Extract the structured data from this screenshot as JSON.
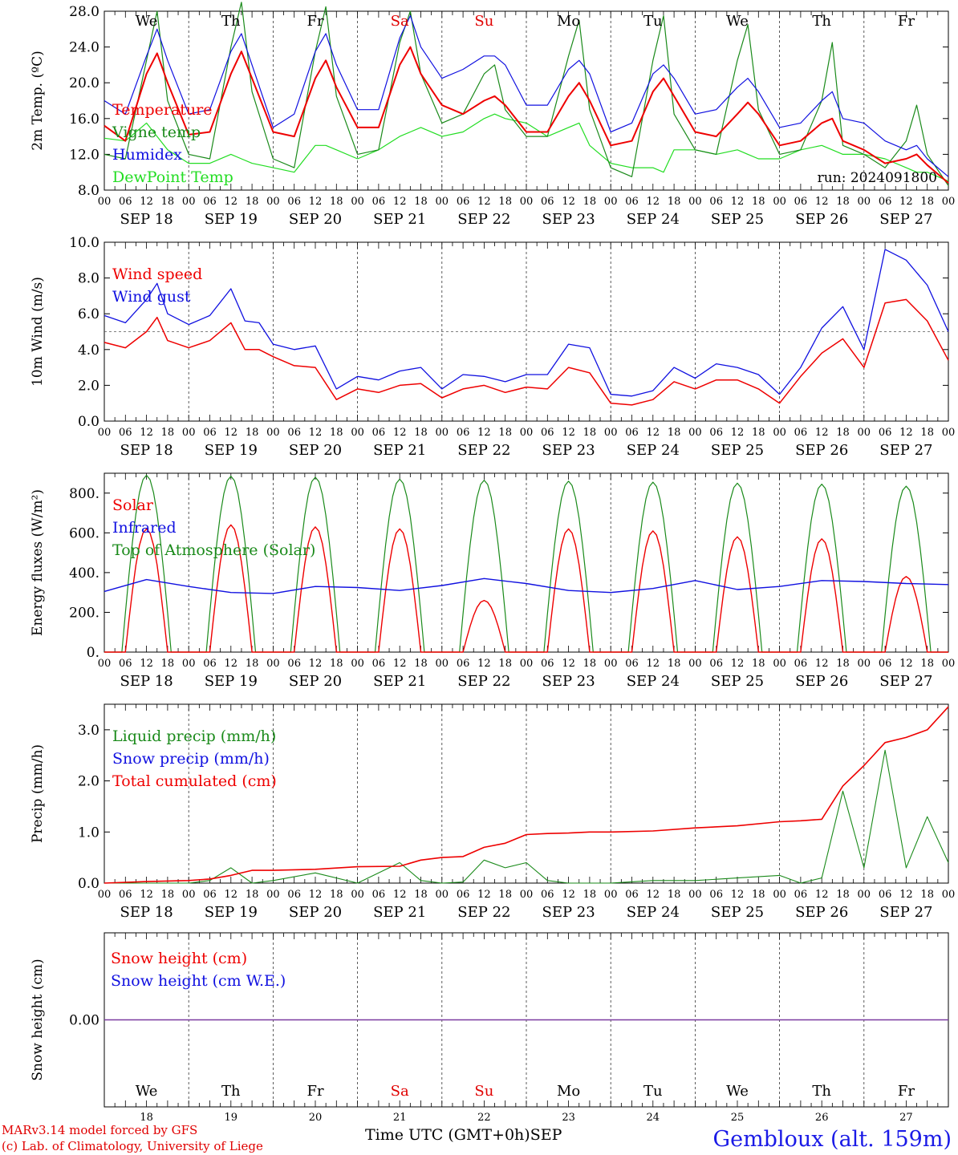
{
  "station": "Gembloux (alt. 159m)",
  "footer": {
    "model": "MARv3.14 model forced by GFS",
    "lab": "(c) Lab. of Climatology, University of Liege",
    "time_axis": "Time UTC (GMT+0h)",
    "month": "SEP"
  },
  "time_axis": {
    "days": [
      "SEP 18",
      "SEP 19",
      "SEP 20",
      "SEP 21",
      "SEP 22",
      "SEP 23",
      "SEP 24",
      "SEP 25",
      "SEP 26",
      "SEP 27"
    ],
    "day_numbers": [
      "18",
      "19",
      "20",
      "21",
      "22",
      "23",
      "24",
      "25",
      "26",
      "27"
    ],
    "weekdays": [
      "We",
      "Th",
      "Fr",
      "Sa",
      "Su",
      "Mo",
      "Tu",
      "We",
      "Th",
      "Fr"
    ],
    "weekend_color": "#e00000",
    "hour_ticks": [
      "00",
      "06",
      "12",
      "18"
    ],
    "x_range_hours": [
      0,
      240
    ]
  },
  "colors": {
    "red": "#ee0000",
    "blue": "#1010e0",
    "green": "#1a8a1a",
    "light_green": "#22dd22",
    "purple": "#7a3aa0"
  },
  "chart_data": [
    {
      "type": "line",
      "ylabel": "2m Temp. (ºC)",
      "yticks": [
        "8.0",
        "12.0",
        "16.0",
        "20.0",
        "24.0",
        "28.0"
      ],
      "ylim": [
        8,
        28
      ],
      "run_label": "run: 2024091800",
      "legend": [
        "Temperature",
        "Vigne temp",
        "Humidex",
        "DewPoint Temp"
      ],
      "x": [
        0,
        6,
        12,
        15,
        18,
        24,
        30,
        36,
        39,
        42,
        48,
        54,
        60,
        63,
        66,
        72,
        78,
        84,
        87,
        90,
        96,
        102,
        108,
        111,
        114,
        120,
        126,
        132,
        135,
        138,
        144,
        150,
        156,
        159,
        162,
        168,
        174,
        180,
        183,
        186,
        192,
        198,
        204,
        207,
        210,
        216,
        222,
        228,
        231,
        234,
        240
      ],
      "series": [
        {
          "name": "Temperature",
          "color": "red",
          "values": [
            15.2,
            13.5,
            21.0,
            23.3,
            20.0,
            14.2,
            14.5,
            21.0,
            23.5,
            20.5,
            14.5,
            14.0,
            20.5,
            22.5,
            19.5,
            15.0,
            15.0,
            22.0,
            24.0,
            21.0,
            17.5,
            16.5,
            18.0,
            18.5,
            17.5,
            14.5,
            14.5,
            18.5,
            20.0,
            18.0,
            13.0,
            13.5,
            19.0,
            20.5,
            18.5,
            14.5,
            14.0,
            16.5,
            17.8,
            16.5,
            13.0,
            13.5,
            15.5,
            16.0,
            13.5,
            12.5,
            11.0,
            11.5,
            12.0,
            10.8,
            8.8
          ]
        },
        {
          "name": "Vigne temp",
          "color": "green",
          "values": [
            12.0,
            11.5,
            22.5,
            28.0,
            18.0,
            12.0,
            11.5,
            24.0,
            29.0,
            19.0,
            11.5,
            10.5,
            23.5,
            28.5,
            18.5,
            12.0,
            12.5,
            24.5,
            28.0,
            21.0,
            15.5,
            16.5,
            21.0,
            22.0,
            17.0,
            14.0,
            14.0,
            23.0,
            27.0,
            17.0,
            10.5,
            9.5,
            22.5,
            27.5,
            16.5,
            12.5,
            12.0,
            22.5,
            26.5,
            17.0,
            12.0,
            12.5,
            18.0,
            24.5,
            13.0,
            12.0,
            10.5,
            13.5,
            17.5,
            12.0,
            8.5
          ]
        },
        {
          "name": "Humidex",
          "color": "blue",
          "values": [
            18.0,
            16.5,
            23.0,
            26.0,
            22.5,
            16.5,
            17.0,
            23.5,
            25.5,
            22.0,
            15.0,
            16.5,
            23.5,
            25.5,
            22.0,
            17.0,
            17.0,
            25.0,
            27.5,
            24.0,
            20.5,
            21.5,
            23.0,
            23.0,
            22.0,
            17.5,
            17.5,
            21.5,
            22.5,
            21.0,
            14.5,
            15.5,
            21.0,
            22.0,
            20.5,
            16.5,
            17.0,
            19.5,
            20.5,
            19.0,
            15.0,
            15.5,
            18.0,
            19.0,
            16.0,
            15.5,
            13.5,
            12.5,
            13.0,
            11.5,
            9.5
          ]
        },
        {
          "name": "DewPoint Temp",
          "color": "light_green",
          "values": [
            13.8,
            13.5,
            15.5,
            14.0,
            12.5,
            11.0,
            11.0,
            12.0,
            11.5,
            11.0,
            10.5,
            10.0,
            13.0,
            13.0,
            12.5,
            11.5,
            12.5,
            14.0,
            14.5,
            15.0,
            14.0,
            14.5,
            16.0,
            16.5,
            16.0,
            15.5,
            14.0,
            15.0,
            15.5,
            13.0,
            11.0,
            10.5,
            10.5,
            10.0,
            12.5,
            12.5,
            12.0,
            12.5,
            12.0,
            11.5,
            11.5,
            12.5,
            13.0,
            12.5,
            12.0,
            12.0,
            11.5,
            10.5,
            10.0,
            10.0,
            9.0
          ]
        }
      ]
    },
    {
      "type": "line",
      "ylabel": "10m Wind (m/s)",
      "yticks": [
        "0.0",
        "2.0",
        "4.0",
        "6.0",
        "8.0",
        "10.0"
      ],
      "ylim": [
        0,
        10
      ],
      "reference_line": 5.0,
      "legend": [
        "Wind speed",
        "Wind gust"
      ],
      "x": [
        0,
        6,
        12,
        15,
        18,
        24,
        30,
        36,
        40,
        44,
        48,
        54,
        60,
        66,
        72,
        78,
        84,
        90,
        96,
        102,
        108,
        114,
        120,
        126,
        132,
        138,
        144,
        150,
        156,
        162,
        168,
        174,
        180,
        186,
        192,
        198,
        204,
        210,
        216,
        222,
        228,
        234,
        240
      ],
      "series": [
        {
          "name": "Wind speed",
          "color": "red",
          "values": [
            4.4,
            4.1,
            5.0,
            5.8,
            4.5,
            4.1,
            4.5,
            5.5,
            4.0,
            4.0,
            3.6,
            3.1,
            3.0,
            1.2,
            1.8,
            1.6,
            2.0,
            2.1,
            1.3,
            1.8,
            2.0,
            1.6,
            1.9,
            1.8,
            3.0,
            2.7,
            1.0,
            0.9,
            1.2,
            2.2,
            1.8,
            2.3,
            2.3,
            1.8,
            1.0,
            2.5,
            3.8,
            4.6,
            3.0,
            6.6,
            6.8,
            5.6,
            3.4
          ]
        },
        {
          "name": "Wind gust",
          "color": "blue",
          "values": [
            5.9,
            5.5,
            6.8,
            7.7,
            6.0,
            5.4,
            5.9,
            7.4,
            5.6,
            5.5,
            4.3,
            4.0,
            4.2,
            1.8,
            2.5,
            2.3,
            2.8,
            3.0,
            1.8,
            2.6,
            2.5,
            2.2,
            2.6,
            2.6,
            4.3,
            4.1,
            1.5,
            1.4,
            1.7,
            3.0,
            2.4,
            3.2,
            3.0,
            2.6,
            1.5,
            3.0,
            5.2,
            6.4,
            4.0,
            9.6,
            9.0,
            7.6,
            5.0
          ]
        }
      ]
    },
    {
      "type": "line",
      "ylabel": "Energy fluxes (W/m²)",
      "yticks": [
        "0.",
        "200.",
        "400.",
        "600.",
        "800."
      ],
      "ylim": [
        0,
        900
      ],
      "legend": [
        "Solar",
        "Infrared",
        "Top of Atmosphere (Solar)"
      ],
      "diurnal_solar_peaks": {
        "Solar": [
          620,
          640,
          630,
          620,
          260,
          620,
          610,
          580,
          570,
          380
        ],
        "Top of Atmosphere (Solar)": [
          890,
          885,
          880,
          870,
          865,
          860,
          855,
          850,
          845,
          835
        ]
      },
      "x": [
        0,
        12,
        24,
        36,
        48,
        60,
        72,
        84,
        96,
        108,
        120,
        132,
        144,
        156,
        168,
        180,
        192,
        204,
        216,
        228,
        240
      ],
      "series": [
        {
          "name": "Infrared",
          "color": "blue",
          "values": [
            305,
            365,
            330,
            300,
            295,
            330,
            325,
            310,
            335,
            370,
            345,
            310,
            300,
            320,
            360,
            315,
            330,
            360,
            355,
            345,
            340
          ]
        }
      ]
    },
    {
      "type": "line",
      "ylabel": "Precip (mm/h)",
      "yticks": [
        "0.0",
        "1.0",
        "2.0",
        "3.0"
      ],
      "ylim": [
        0,
        3.5
      ],
      "legend": [
        "Liquid precip (mm/h)",
        "Snow precip (mm/h)",
        "Total cumulated (cm)"
      ],
      "x": [
        0,
        12,
        24,
        30,
        36,
        42,
        48,
        60,
        72,
        84,
        90,
        96,
        102,
        108,
        114,
        120,
        126,
        132,
        138,
        144,
        156,
        168,
        180,
        192,
        198,
        204,
        210,
        216,
        222,
        228,
        234,
        240
      ],
      "series": [
        {
          "name": "Total cumulated (cm)",
          "color": "red",
          "values": [
            0.0,
            0.03,
            0.05,
            0.08,
            0.15,
            0.25,
            0.25,
            0.27,
            0.32,
            0.33,
            0.45,
            0.5,
            0.52,
            0.7,
            0.78,
            0.95,
            0.97,
            0.98,
            1.0,
            1.0,
            1.02,
            1.08,
            1.12,
            1.2,
            1.22,
            1.25,
            1.9,
            2.3,
            2.75,
            2.85,
            3.0,
            3.45
          ]
        },
        {
          "name": "Liquid precip (mm/h)",
          "color": "green",
          "values": [
            0.0,
            0.0,
            0.0,
            0.05,
            0.3,
            0.0,
            0.05,
            0.2,
            0.0,
            0.4,
            0.05,
            0.0,
            0.02,
            0.45,
            0.3,
            0.4,
            0.05,
            0.0,
            0.0,
            0.0,
            0.05,
            0.05,
            0.1,
            0.15,
            0.0,
            0.1,
            1.8,
            0.3,
            2.6,
            0.3,
            1.3,
            0.4
          ]
        },
        {
          "name": "Snow precip (mm/h)",
          "color": "blue",
          "values": [
            0,
            0,
            0,
            0,
            0,
            0,
            0,
            0,
            0,
            0,
            0,
            0,
            0,
            0,
            0,
            0,
            0,
            0,
            0,
            0,
            0,
            0,
            0,
            0,
            0,
            0,
            0,
            0,
            0,
            0,
            0,
            0
          ]
        }
      ]
    },
    {
      "type": "line",
      "ylabel": "Snow height (cm)",
      "yticks": [
        "0.00"
      ],
      "ylim": [
        -1,
        1
      ],
      "legend": [
        "Snow height (cm)",
        "Snow height (cm W.E.)"
      ],
      "x": [
        0,
        240
      ],
      "series": [
        {
          "name": "Snow height (cm)",
          "color": "red",
          "values": [
            0,
            0
          ]
        },
        {
          "name": "Snow height (cm W.E.)",
          "color": "blue",
          "values": [
            0,
            0
          ]
        }
      ]
    }
  ]
}
